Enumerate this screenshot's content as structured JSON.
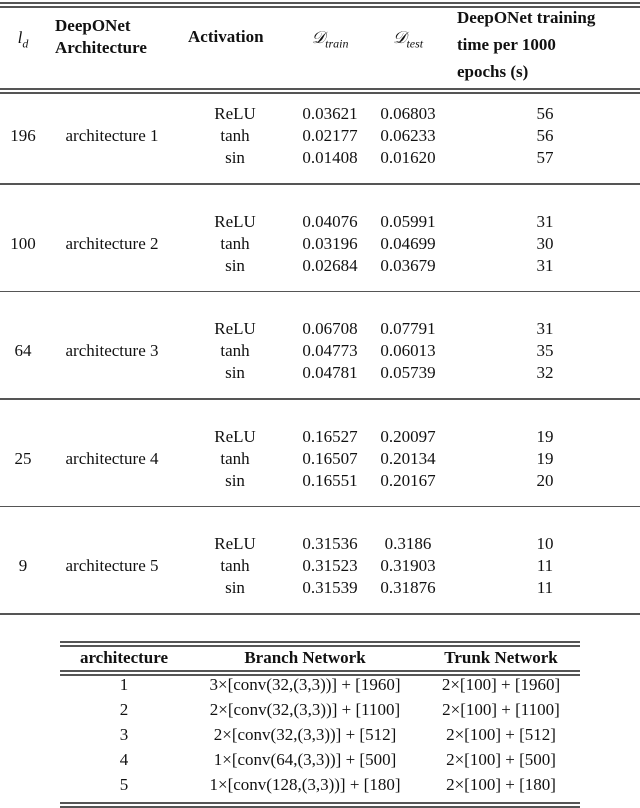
{
  "main_table": {
    "headers": {
      "ld": "l",
      "ld_sub": "d",
      "architecture": [
        "DeepONet",
        "Architecture"
      ],
      "activation": "Activation",
      "dtrain": "𝒟",
      "dtrain_sub": "train",
      "dtest": "𝒟",
      "dtest_sub": "test",
      "time": [
        "DeepONet training",
        "time per 1000",
        "epochs (s)"
      ]
    },
    "groups": [
      {
        "ld": "196",
        "architecture": "architecture 1",
        "rows": [
          {
            "activation": "ReLU",
            "dtrain": "0.03621",
            "dtest": "0.06803",
            "time": "56"
          },
          {
            "activation": "tanh",
            "dtrain": "0.02177",
            "dtest": "0.06233",
            "time": "56"
          },
          {
            "activation": "sin",
            "dtrain": "0.01408",
            "dtest": "0.01620",
            "time": "57"
          }
        ]
      },
      {
        "ld": "100",
        "architecture": "architecture 2",
        "rows": [
          {
            "activation": "ReLU",
            "dtrain": "0.04076",
            "dtest": "0.05991",
            "time": "31"
          },
          {
            "activation": "tanh",
            "dtrain": "0.03196",
            "dtest": "0.04699",
            "time": "30"
          },
          {
            "activation": "sin",
            "dtrain": "0.02684",
            "dtest": "0.03679",
            "time": "31"
          }
        ]
      },
      {
        "ld": "64",
        "architecture": "architecture 3",
        "rows": [
          {
            "activation": "ReLU",
            "dtrain": "0.06708",
            "dtest": "0.07791",
            "time": "31"
          },
          {
            "activation": "tanh",
            "dtrain": "0.04773",
            "dtest": "0.06013",
            "time": "35"
          },
          {
            "activation": "sin",
            "dtrain": "0.04781",
            "dtest": "0.05739",
            "time": "32"
          }
        ]
      },
      {
        "ld": "25",
        "architecture": "architecture 4",
        "rows": [
          {
            "activation": "ReLU",
            "dtrain": "0.16527",
            "dtest": "0.20097",
            "time": "19"
          },
          {
            "activation": "tanh",
            "dtrain": "0.16507",
            "dtest": "0.20134",
            "time": "19"
          },
          {
            "activation": "sin",
            "dtrain": "0.16551",
            "dtest": "0.20167",
            "time": "20"
          }
        ]
      },
      {
        "ld": "9",
        "architecture": "architecture 5",
        "rows": [
          {
            "activation": "ReLU",
            "dtrain": "0.31536",
            "dtest": "0.3186",
            "time": "10"
          },
          {
            "activation": "tanh",
            "dtrain": "0.31523",
            "dtest": "0.31903",
            "time": "11"
          },
          {
            "activation": "sin",
            "dtrain": "0.31539",
            "dtest": "0.31876",
            "time": "11"
          }
        ]
      }
    ]
  },
  "arch_table": {
    "headers": [
      "architecture",
      "Branch Network",
      "Trunk Network"
    ],
    "rows": [
      [
        "1",
        "3×[conv(32,(3,3))] + [1960]",
        "2×[100] + [1960]"
      ],
      [
        "2",
        "2×[conv(32,(3,3))] + [1100]",
        "2×[100] + [1100]"
      ],
      [
        "3",
        "2×[conv(32,(3,3))] + [512]",
        "2×[100] + [512]"
      ],
      [
        "4",
        "1×[conv(64,(3,3))] + [500]",
        "2×[100] + [500]"
      ],
      [
        "5",
        "1×[conv(128,(3,3))] + [180]",
        "2×[100] + [180]"
      ]
    ]
  }
}
